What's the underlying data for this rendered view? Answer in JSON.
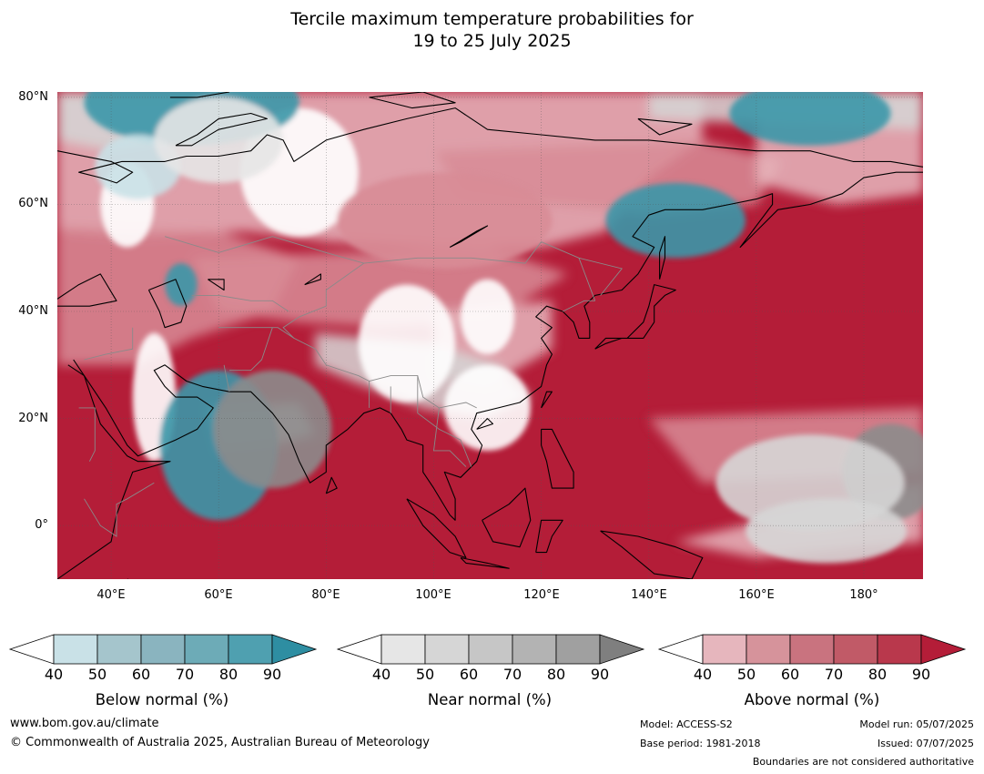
{
  "title": {
    "line1": "Tercile maximum temperature probabilities for",
    "line2": "19 to 25 July 2025"
  },
  "map": {
    "lon_range": [
      30,
      191
    ],
    "lat_range": [
      -10,
      81
    ],
    "lat_labels": [
      "80°N",
      "60°N",
      "40°N",
      "20°N",
      "0°"
    ],
    "lat_values": [
      80,
      60,
      40,
      20,
      0
    ],
    "lon_labels": [
      "40°E",
      "60°E",
      "80°E",
      "100°E",
      "120°E",
      "140°E",
      "160°E",
      "180°"
    ],
    "lon_values": [
      40,
      60,
      80,
      100,
      120,
      140,
      160,
      180
    ],
    "gridlines": true,
    "dominant_category": "above-normal",
    "colors": {
      "ocean_base": "#b41d38",
      "land_mid": "#d88c96",
      "land_light": "#e6b6bd",
      "near_grey": "#d6d6d6",
      "near_dark": "#8c8c8c",
      "below_teal": "#3a97a8",
      "coast": "#000000",
      "border": "#8a8a8a"
    }
  },
  "colorbars": [
    {
      "id": "below",
      "label": "Below normal (%)",
      "ticks": [
        "40",
        "50",
        "60",
        "70",
        "80",
        "90"
      ],
      "colors": [
        "#ffffff",
        "#c9e1e7",
        "#a5c5cc",
        "#8ab4bf",
        "#6dabb7",
        "#4fa0b0",
        "#2e8ea2"
      ]
    },
    {
      "id": "near",
      "label": "Near normal (%)",
      "ticks": [
        "40",
        "50",
        "60",
        "70",
        "80",
        "90"
      ],
      "colors": [
        "#ffffff",
        "#e6e6e6",
        "#d6d6d6",
        "#c6c6c6",
        "#b3b3b3",
        "#a0a0a0",
        "#7f7f7f"
      ]
    },
    {
      "id": "above",
      "label": "Above normal (%)",
      "ticks": [
        "40",
        "50",
        "60",
        "70",
        "80",
        "90"
      ],
      "colors": [
        "#ffffff",
        "#e6b6bd",
        "#d6939b",
        "#c9737f",
        "#c15a67",
        "#b9384c",
        "#b41d38"
      ]
    }
  ],
  "footer": {
    "website": "www.bom.gov.au/climate",
    "copyright": "© Commonwealth of Australia 2025, Australian Bureau of Meteorology",
    "model": "Model: ACCESS-S2",
    "base_period": "Base period: 1981-2018",
    "model_run": "Model run: 05/07/2025",
    "issued": "Issued: 07/07/2025",
    "boundaries": "Boundaries are not considered authoritative"
  }
}
